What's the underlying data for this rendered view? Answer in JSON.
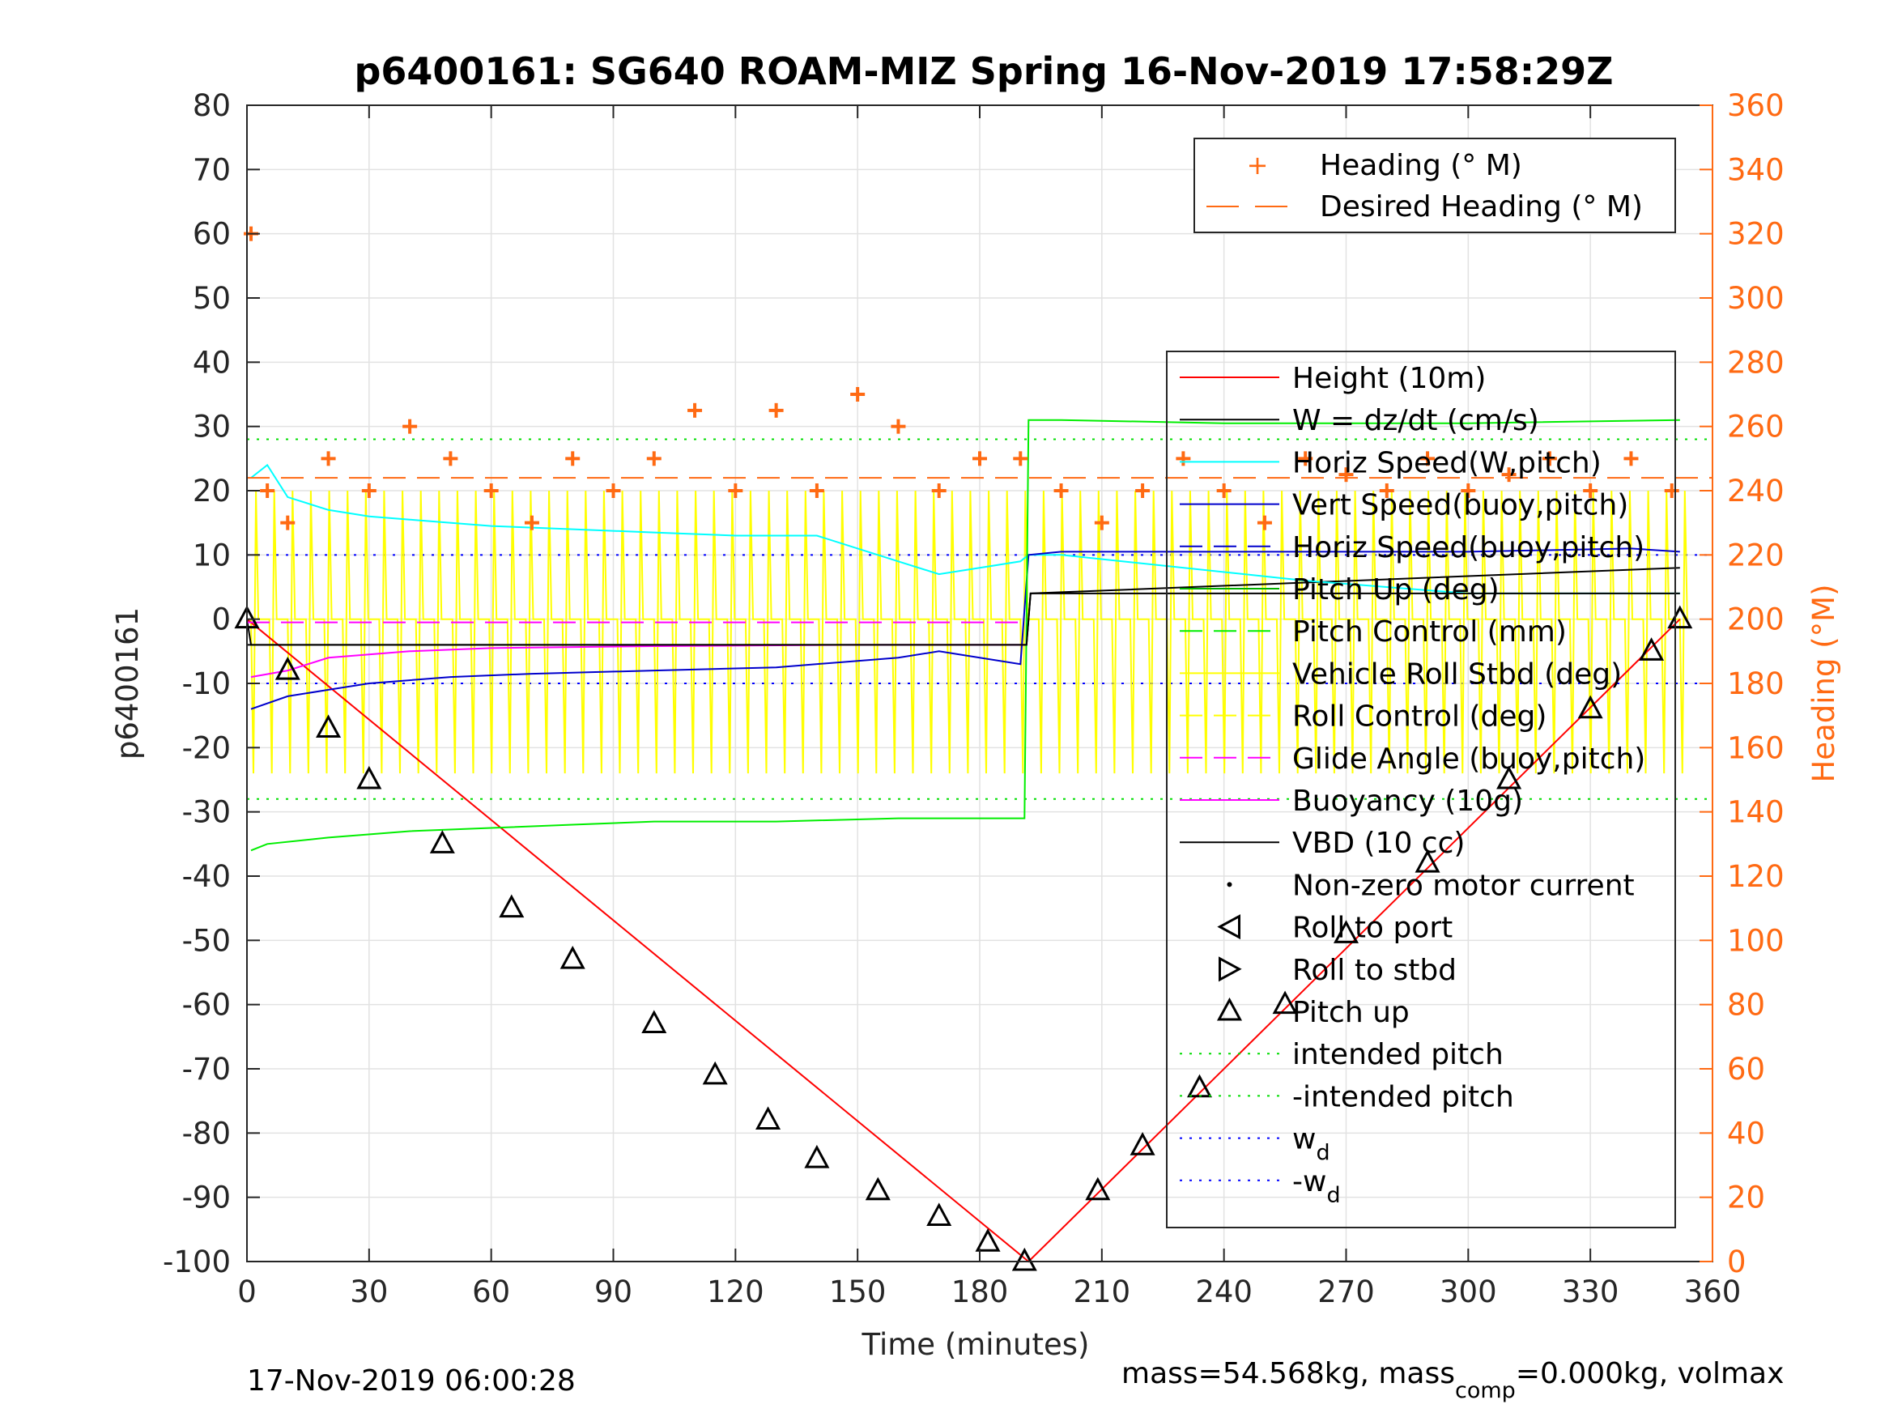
{
  "chart_data": {
    "type": "line",
    "title": "p6400161: SG640 ROAM-MIZ Spring 16-Nov-2019 17:58:29Z",
    "xlabel": "Time (minutes)",
    "ylabel": "p6400161",
    "y2label": "Heading (°M)",
    "xlim": [
      0,
      360
    ],
    "ylim": [
      -100,
      80
    ],
    "y2lim": [
      0,
      360
    ],
    "xticks": [
      "0",
      "30",
      "60",
      "90",
      "120",
      "150",
      "180",
      "210",
      "240",
      "270",
      "300",
      "330",
      "360"
    ],
    "yticks": [
      "80",
      "70",
      "60",
      "50",
      "40",
      "30",
      "20",
      "10",
      "0",
      "-10",
      "-20",
      "-30",
      "-40",
      "-50",
      "-60",
      "-70",
      "-80",
      "-90",
      "-100"
    ],
    "y2ticks": [
      "360",
      "340",
      "320",
      "300",
      "280",
      "260",
      "240",
      "220",
      "200",
      "180",
      "160",
      "140",
      "120",
      "100",
      "80",
      "60",
      "40",
      "20",
      "0"
    ],
    "grid": true,
    "colors": {
      "height": "#ff0000",
      "w": "#000000",
      "horiz_speed_w": "#00ffff",
      "vert_speed": "#0000cc",
      "horiz_speed_buoy": "#0000cc",
      "pitch_up": "#00b000",
      "pitch_control": "#00ee00",
      "roll_stbd": "#ffff00",
      "roll_control": "#ffff00",
      "glide_angle": "#ff00ff",
      "buoyancy": "#ff00ff",
      "vbd": "#000000",
      "heading": "#ff6a13",
      "desired_heading": "#ff6a13",
      "intended_pitch": "#00dd00",
      "wd": "#0000ff"
    },
    "heading_legend": [
      "Heading (° M)",
      "Desired Heading (° M)"
    ],
    "legend": [
      "Height (10m)",
      "W = dz/dt (cm/s)",
      "Horiz Speed(W,pitch)",
      "Vert Speed(buoy,pitch)",
      "Horiz Speed(buoy,pitch)",
      "Pitch Up (deg)",
      "Pitch Control (mm)",
      "Vehicle Roll Stbd (deg)",
      "Roll Control (deg)",
      "Glide Angle (buoy,pitch)",
      "Buoyancy (10g)",
      "VBD (10 cc)",
      "Non-zero motor current",
      "Roll to port",
      "Roll to stbd",
      "Pitch up",
      "intended pitch",
      "-intended pitch",
      "w",
      "-w"
    ],
    "legend_placement": "right",
    "series": [
      {
        "name": "Height (10m)",
        "x": [
          0,
          192,
          352
        ],
        "y": [
          0,
          -100,
          0
        ]
      },
      {
        "name": "W = dz/dt (cm/s)",
        "x": [
          0,
          1,
          191.5,
          192.5,
          352
        ],
        "y": [
          0,
          -4,
          -4,
          4,
          8
        ]
      },
      {
        "name": "Horiz Speed(W,pitch)",
        "x": [
          1,
          5,
          10,
          20,
          30,
          40,
          60,
          80,
          100,
          120,
          140,
          160,
          170,
          180,
          190,
          192,
          200,
          260,
          300,
          352
        ],
        "y": [
          22,
          24,
          19,
          17,
          16,
          15.5,
          14.5,
          14,
          13.5,
          13,
          13,
          9,
          7,
          8,
          9,
          10,
          10,
          6,
          4,
          4
        ]
      },
      {
        "name": "Vert Speed(buoy,pitch)",
        "x": [
          1,
          10,
          20,
          30,
          50,
          70,
          100,
          130,
          150,
          160,
          170,
          180,
          190,
          192,
          200,
          250,
          300,
          340,
          352
        ],
        "y": [
          -14,
          -12,
          -11,
          -10,
          -9,
          -8.5,
          -8,
          -7.5,
          -6.5,
          -6,
          -5,
          -6,
          -7,
          10,
          10.5,
          10.5,
          10.5,
          11,
          10.5
        ]
      },
      {
        "name": "Pitch Control (mm)",
        "x": [
          1,
          5,
          20,
          40,
          60,
          80,
          100,
          130,
          160,
          191,
          192,
          200,
          240,
          300,
          352
        ],
        "y": [
          -36,
          -35,
          -34,
          -33,
          -32.5,
          -32,
          -31.5,
          -31.5,
          -31,
          -31,
          31,
          31,
          30.5,
          30.5,
          31
        ]
      },
      {
        "name": "Glide Angle (buoy,pitch)",
        "x": [
          0,
          191
        ],
        "y": [
          -0.5,
          -0.5
        ]
      },
      {
        "name": "Buoyancy (10g)",
        "x": [
          1,
          10,
          20,
          30,
          40,
          60,
          100,
          150,
          191
        ],
        "y": [
          -9,
          -8,
          -6,
          -5.5,
          -5,
          -4.5,
          -4.2,
          -4,
          -4
        ]
      },
      {
        "name": "VBD (10 cc)",
        "x": [
          0,
          191.5,
          192.5,
          352
        ],
        "y": [
          -4,
          -4,
          4,
          4
        ]
      },
      {
        "name": "Pitch up",
        "x": [
          0,
          10,
          20,
          30,
          48,
          65,
          80,
          100,
          115,
          128,
          140,
          155,
          170,
          182,
          191,
          209,
          220,
          234,
          255,
          270,
          290,
          310,
          330,
          345,
          352
        ],
        "y": [
          0,
          -8,
          -17,
          -25,
          -35,
          -45,
          -53,
          -63,
          -71,
          -78,
          -84,
          -89,
          -93,
          -97,
          -100,
          -89,
          -82,
          -73,
          -60,
          -49,
          -38,
          -25,
          -14,
          -5,
          0
        ]
      },
      {
        "name": "Heading (° M)",
        "x": [
          1,
          5,
          10,
          20,
          30,
          40,
          50,
          60,
          70,
          80,
          90,
          100,
          110,
          120,
          130,
          140,
          150,
          160,
          170,
          180,
          190,
          200,
          210,
          220,
          230,
          240,
          250,
          260,
          270,
          280,
          290,
          300,
          310,
          320,
          330,
          340,
          350
        ],
        "y": [
          320,
          240,
          230,
          250,
          240,
          260,
          250,
          240,
          230,
          250,
          240,
          250,
          265,
          240,
          265,
          240,
          270,
          260,
          240,
          250,
          250,
          240,
          230,
          240,
          250,
          240,
          230,
          250,
          245,
          240,
          250,
          240,
          245,
          250,
          240,
          250,
          240
        ]
      },
      {
        "name": "Desired Heading (° M)",
        "x": [
          0,
          360
        ],
        "y": [
          244,
          244
        ]
      }
    ],
    "reference_lines": {
      "intended_pitch": 28,
      "-intended_pitch": -28,
      "w": 10,
      "-w": -10
    },
    "annotations": {
      "footer_left": "17-Nov-2019 06:00:28",
      "footer_right_prefix": "mass=54.568kg, mass",
      "footer_right_sub": "comp",
      "footer_right_suffix": "=0.000kg, volmax"
    }
  },
  "legend_display": {
    "wd_base": "w",
    "wd_sub": "d",
    "neg_wd_base": "-w",
    "neg_wd_sub": "d"
  }
}
